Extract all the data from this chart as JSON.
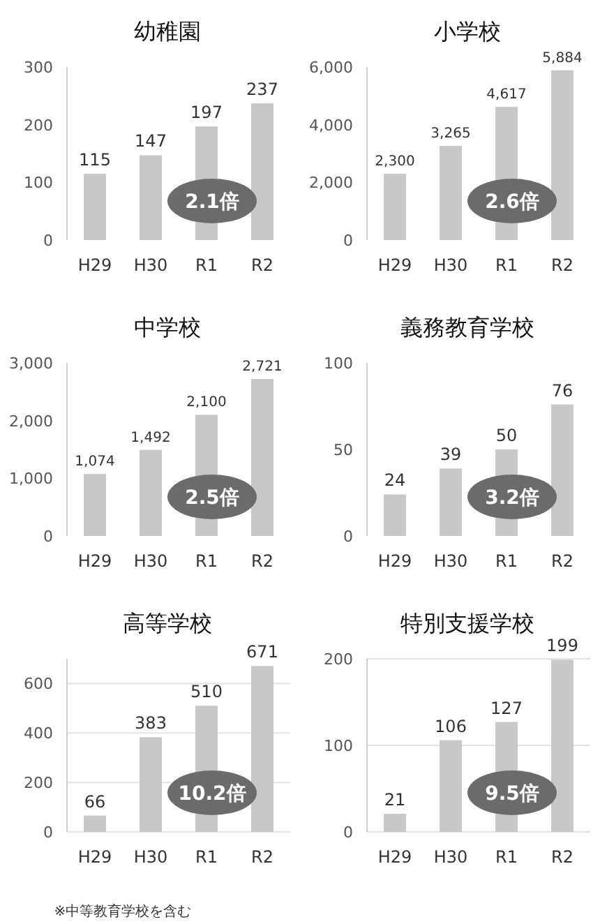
{
  "chart_data": [
    {
      "type": "bar",
      "title": "幼稚園",
      "categories": [
        "H29",
        "H30",
        "R1",
        "R2"
      ],
      "values": [
        115,
        147,
        197,
        237
      ],
      "value_labels": [
        "115",
        "147",
        "197",
        "237"
      ],
      "color": "#c8c8c8",
      "ylim": [
        0,
        300
      ],
      "yticks": [
        0,
        100,
        200,
        300
      ],
      "annotations": [
        "2.1倍"
      ]
    },
    {
      "type": "bar",
      "title": "小学校",
      "categories": [
        "H29",
        "H30",
        "R1",
        "R2"
      ],
      "values": [
        2300,
        3265,
        4617,
        5884
      ],
      "value_labels": [
        "2,300",
        "3,265",
        "4,617",
        "5,884"
      ],
      "color": "#c8c8c8",
      "ylim": [
        0,
        6000
      ],
      "yticks": [
        0,
        {
          "value": 2000,
          "label": "2,000"
        },
        {
          "value": 4000,
          "label": "4,000"
        },
        {
          "value": 6000,
          "label": "6,000"
        }
      ],
      "annotations": [
        "2.6倍"
      ]
    },
    {
      "type": "bar",
      "title": "中学校",
      "categories": [
        "H29",
        "H30",
        "R1",
        "R2"
      ],
      "values": [
        1074,
        1492,
        2100,
        2721
      ],
      "value_labels": [
        "1,074",
        "1,492",
        "2,100",
        "2,721"
      ],
      "color": "#c8c8c8",
      "ylim": [
        0,
        3000
      ],
      "yticks": [
        0,
        {
          "value": 1000,
          "label": "1,000"
        },
        {
          "value": 2000,
          "label": "2,000"
        },
        {
          "value": 3000,
          "label": "3,000"
        }
      ],
      "annotations": [
        "2.5倍"
      ]
    },
    {
      "type": "bar",
      "title": "義務教育学校",
      "categories": [
        "H29",
        "H30",
        "R1",
        "R2"
      ],
      "values": [
        24,
        39,
        50,
        76
      ],
      "value_labels": [
        "24",
        "39",
        "50",
        "76"
      ],
      "color": "#c8c8c8",
      "ylim": [
        0,
        100
      ],
      "yticks": [
        0,
        50,
        100
      ],
      "annotations": [
        "3.2倍"
      ]
    },
    {
      "type": "bar",
      "title": "高等学校",
      "categories": [
        "H29",
        "H30",
        "R1",
        "R2"
      ],
      "values": [
        66,
        383,
        510,
        671
      ],
      "value_labels": [
        "66",
        "383",
        "510",
        "671"
      ],
      "color": "#c8c8c8",
      "ylim": [
        0,
        700
      ],
      "yticks": [
        0,
        200,
        400,
        600
      ],
      "grid": "y",
      "annotations": [
        "10.2倍",
        "※中等教育学校を含む"
      ]
    },
    {
      "type": "bar",
      "title": "特別支援学校",
      "categories": [
        "H29",
        "H30",
        "R1",
        "R2"
      ],
      "values": [
        21,
        106,
        127,
        199
      ],
      "value_labels": [
        "21",
        "106",
        "127",
        "199"
      ],
      "color": "#c8c8c8",
      "ylim": [
        0,
        200
      ],
      "yticks": [
        0,
        100,
        200
      ],
      "grid": "y",
      "annotations": [
        "9.5倍"
      ]
    }
  ]
}
